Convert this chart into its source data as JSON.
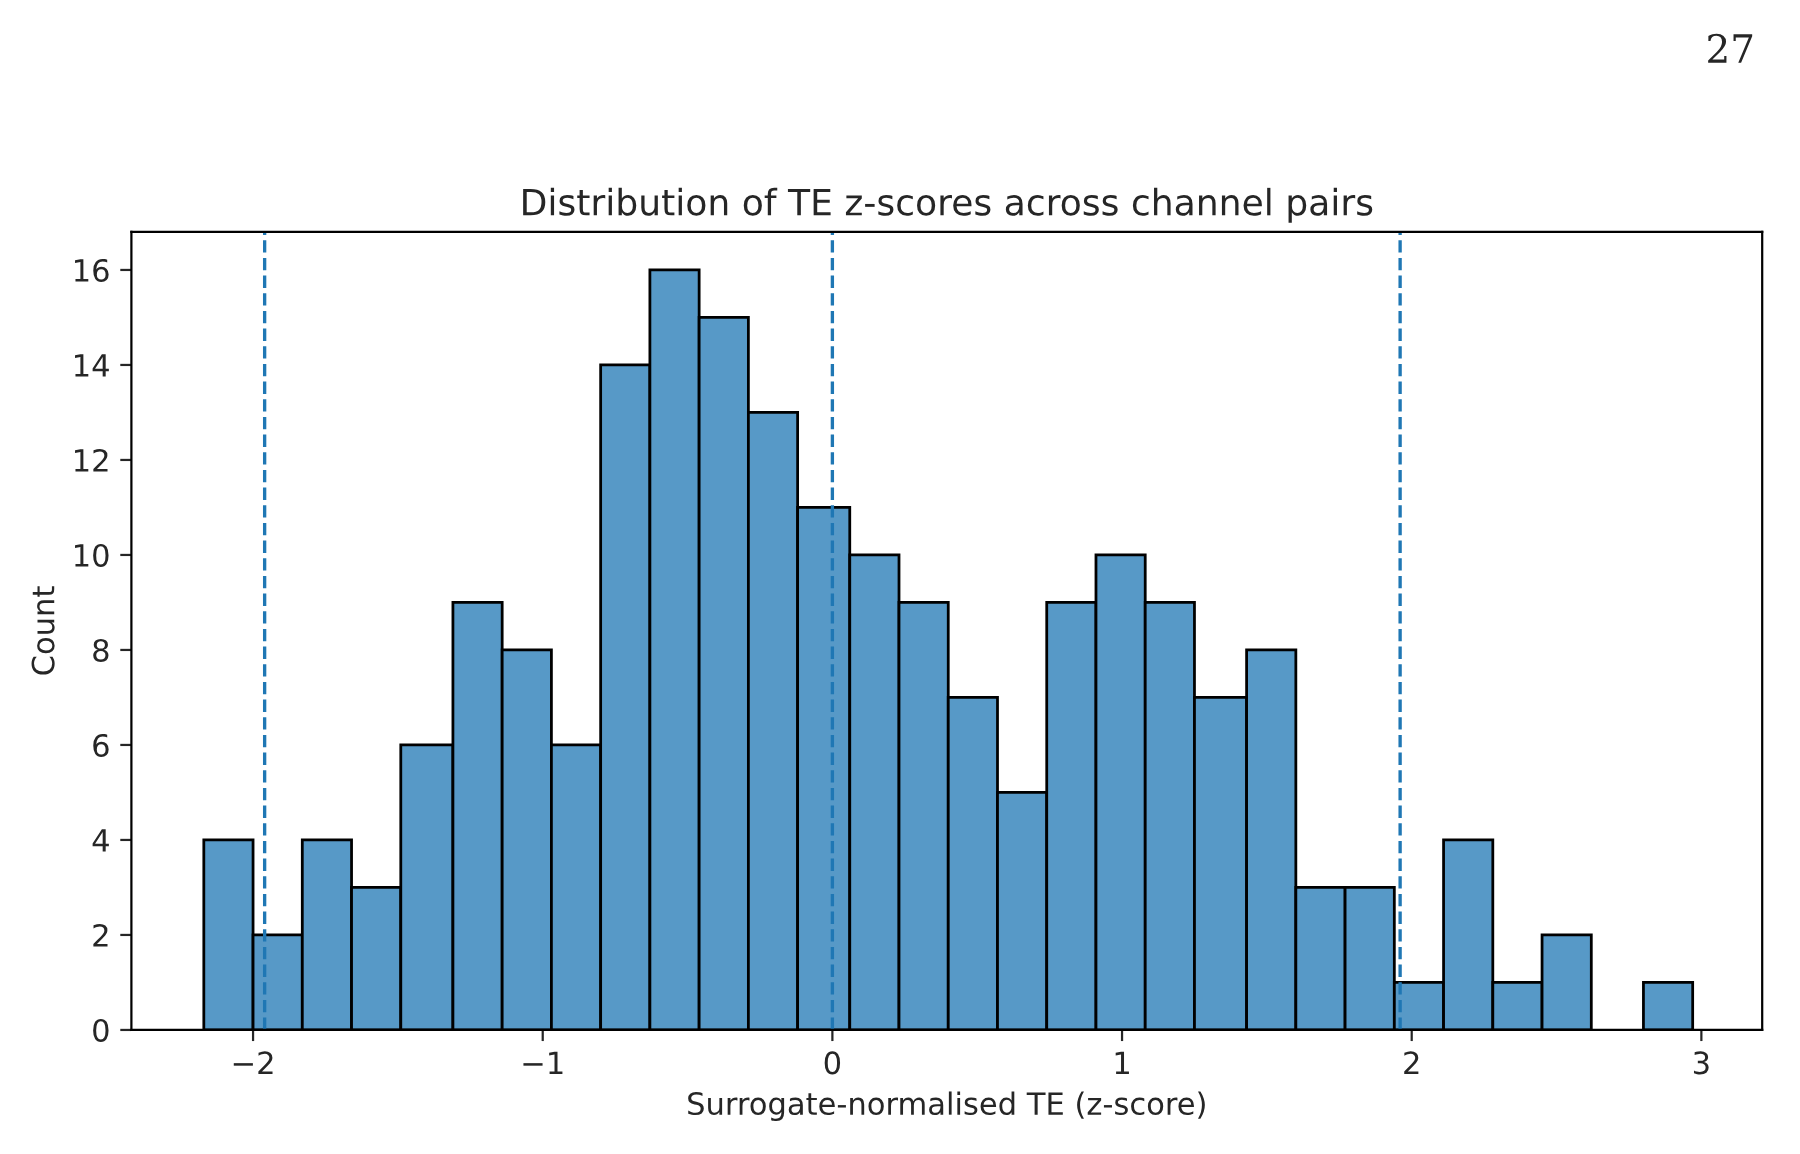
{
  "chart_data": {
    "type": "histogram",
    "title": "Distribution of TE z-scores across channel pairs",
    "xlabel": "Surrogate-normalised TE (z-score)",
    "ylabel": "Count",
    "bins": [
      -2.17,
      -2.0,
      -1.83,
      -1.66,
      -1.49,
      -1.31,
      -1.14,
      -0.97,
      -0.8,
      -0.63,
      -0.46,
      -0.29,
      -0.12,
      0.06,
      0.23,
      0.4,
      0.57,
      0.74,
      0.91,
      1.08,
      1.25,
      1.43,
      1.6,
      1.77,
      1.94,
      2.11,
      2.28,
      2.45,
      2.62,
      2.8,
      2.97
    ],
    "values": [
      4,
      2,
      4,
      3,
      6,
      9,
      8,
      6,
      14,
      16,
      15,
      13,
      11,
      10,
      9,
      7,
      5,
      9,
      10,
      9,
      7,
      8,
      3,
      3,
      1,
      4,
      1,
      2,
      0,
      1
    ],
    "color": "#5799c7",
    "xlim": [
      -2.42,
      3.21
    ],
    "xticks": [
      {
        "value": -2,
        "label": "−2"
      },
      {
        "value": -1,
        "label": "−1"
      },
      0,
      1,
      2,
      3
    ],
    "ylim": [
      0,
      16.8
    ],
    "yticks": [
      0,
      2,
      4,
      6,
      8,
      10,
      12,
      14,
      16
    ],
    "ref_lines": [
      {
        "axis": "x",
        "value": -1.96,
        "color": "#1f77b4",
        "line_style": "dashed"
      },
      {
        "axis": "x",
        "value": 0,
        "color": "#1f77b4",
        "line_style": "dashed"
      },
      {
        "axis": "x",
        "value": 1.96,
        "color": "#1f77b4",
        "line_style": "dashed"
      }
    ],
    "annotations": [
      "27"
    ],
    "grid": false
  }
}
